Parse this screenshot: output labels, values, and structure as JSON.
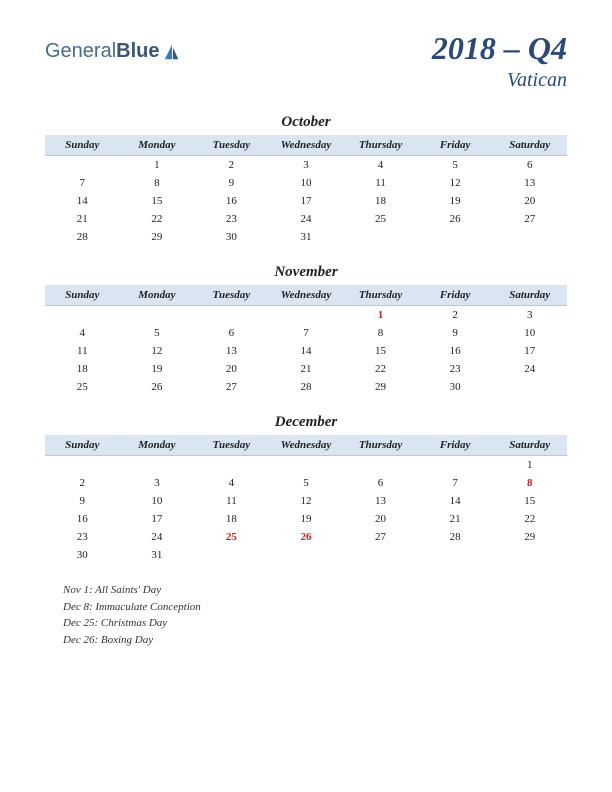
{
  "logo": {
    "part1": "General",
    "part2": "Blue"
  },
  "title": "2018 – Q4",
  "region": "Vatican",
  "colors": {
    "header_bg": "#dae5f2",
    "header_border": "#b8c8dc",
    "title_color": "#2a4a75",
    "text_color": "#222222",
    "holiday_color": "#cc2020",
    "background": "#ffffff"
  },
  "day_headers": [
    "Sunday",
    "Monday",
    "Tuesday",
    "Wednesday",
    "Thursday",
    "Friday",
    "Saturday"
  ],
  "months": [
    {
      "name": "October",
      "weeks": [
        [
          "",
          "1",
          "2",
          "3",
          "4",
          "5",
          "6"
        ],
        [
          "7",
          "8",
          "9",
          "10",
          "11",
          "12",
          "13"
        ],
        [
          "14",
          "15",
          "16",
          "17",
          "18",
          "19",
          "20"
        ],
        [
          "21",
          "22",
          "23",
          "24",
          "25",
          "26",
          "27"
        ],
        [
          "28",
          "29",
          "30",
          "31",
          "",
          "",
          ""
        ]
      ],
      "holidays": []
    },
    {
      "name": "November",
      "weeks": [
        [
          "",
          "",
          "",
          "",
          "1",
          "2",
          "3"
        ],
        [
          "4",
          "5",
          "6",
          "7",
          "8",
          "9",
          "10"
        ],
        [
          "11",
          "12",
          "13",
          "14",
          "15",
          "16",
          "17"
        ],
        [
          "18",
          "19",
          "20",
          "21",
          "22",
          "23",
          "24"
        ],
        [
          "25",
          "26",
          "27",
          "28",
          "29",
          "30",
          ""
        ]
      ],
      "holidays": [
        "1"
      ]
    },
    {
      "name": "December",
      "weeks": [
        [
          "",
          "",
          "",
          "",
          "",
          "",
          "1"
        ],
        [
          "2",
          "3",
          "4",
          "5",
          "6",
          "7",
          "8"
        ],
        [
          "9",
          "10",
          "11",
          "12",
          "13",
          "14",
          "15"
        ],
        [
          "16",
          "17",
          "18",
          "19",
          "20",
          "21",
          "22"
        ],
        [
          "23",
          "24",
          "25",
          "26",
          "27",
          "28",
          "29"
        ],
        [
          "30",
          "31",
          "",
          "",
          "",
          "",
          ""
        ]
      ],
      "holidays": [
        "8",
        "25",
        "26"
      ]
    }
  ],
  "holiday_list": [
    "Nov 1: All Saints' Day",
    "Dec 8: Immaculate Conception",
    "Dec 25: Christmas Day",
    "Dec 26: Boxing Day"
  ]
}
